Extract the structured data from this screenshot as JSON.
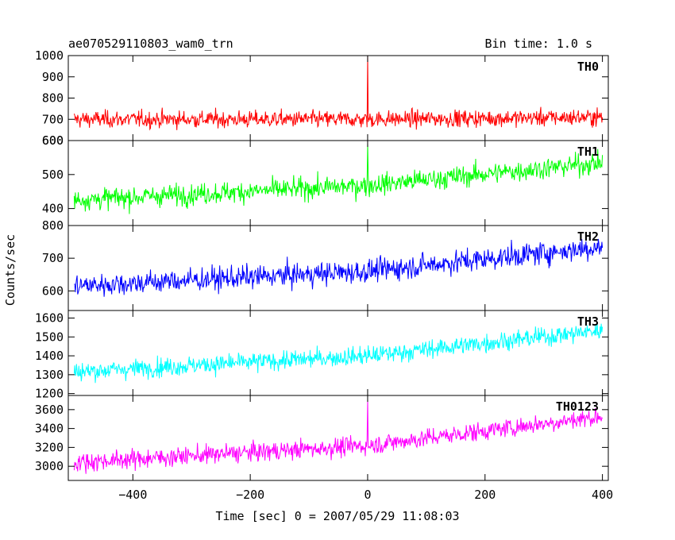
{
  "header": {
    "title": "ae070529110803_wam0_trn",
    "bin_time": "Bin time: 1.0 s"
  },
  "axes": {
    "ylabel": "Counts/sec",
    "xlabel": "Time [sec] 0 = 2007/05/29 11:08:03"
  },
  "chart_data": {
    "type": "line",
    "xlim": [
      -510,
      410
    ],
    "x_ticks": [
      -400,
      -200,
      0,
      200,
      400
    ],
    "x_tick_labels": [
      "−400",
      "−200",
      "0",
      "200",
      "400"
    ],
    "x_start": -500,
    "x_end": 400,
    "x_step": 1,
    "grid": false,
    "panels": [
      {
        "name": "TH0",
        "color": "#ff0000",
        "ylim": [
          600,
          1000
        ],
        "y_ticks": [
          600,
          700,
          800,
          900,
          1000
        ],
        "y_tick_labels": [
          "600",
          "700",
          "800",
          "900",
          "1000"
        ],
        "trend_x": [
          -500,
          0,
          400
        ],
        "trend_y": [
          700,
          700,
          710
        ],
        "noise_sd": 28,
        "spike_x": 0,
        "spike_y": 1000
      },
      {
        "name": "TH1",
        "color": "#00ff00",
        "ylim": [
          350,
          600
        ],
        "y_ticks": [
          400,
          500,
          600
        ],
        "y_tick_labels": [
          "400",
          "500",
          "600"
        ],
        "trend_x": [
          -500,
          0,
          400
        ],
        "trend_y": [
          425,
          468,
          535
        ],
        "noise_sd": 22,
        "spike_x": 0,
        "spike_y": 590
      },
      {
        "name": "TH2",
        "color": "#0000ff",
        "ylim": [
          540,
          800
        ],
        "y_ticks": [
          600,
          700,
          800
        ],
        "y_tick_labels": [
          "600",
          "700",
          "800"
        ],
        "trend_x": [
          -500,
          0,
          400
        ],
        "trend_y": [
          615,
          660,
          735
        ],
        "noise_sd": 25
      },
      {
        "name": "TH3",
        "color": "#00ffff",
        "ylim": [
          1190,
          1640
        ],
        "y_ticks": [
          1200,
          1300,
          1400,
          1500,
          1600
        ],
        "y_tick_labels": [
          "1200",
          "1300",
          "1400",
          "1500",
          "1600"
        ],
        "trend_x": [
          -500,
          0,
          400
        ],
        "trend_y": [
          1315,
          1400,
          1535
        ],
        "noise_sd": 35
      },
      {
        "name": "TH0123",
        "color": "#ff00ff",
        "ylim": [
          2850,
          3750
        ],
        "y_ticks": [
          3000,
          3200,
          3400,
          3600
        ],
        "y_tick_labels": [
          "3000",
          "3200",
          "3400",
          "3600"
        ],
        "trend_x": [
          -500,
          0,
          400
        ],
        "trend_y": [
          3040,
          3220,
          3530
        ],
        "noise_sd": 70,
        "spike_x": 0,
        "spike_y": 3700
      }
    ]
  }
}
